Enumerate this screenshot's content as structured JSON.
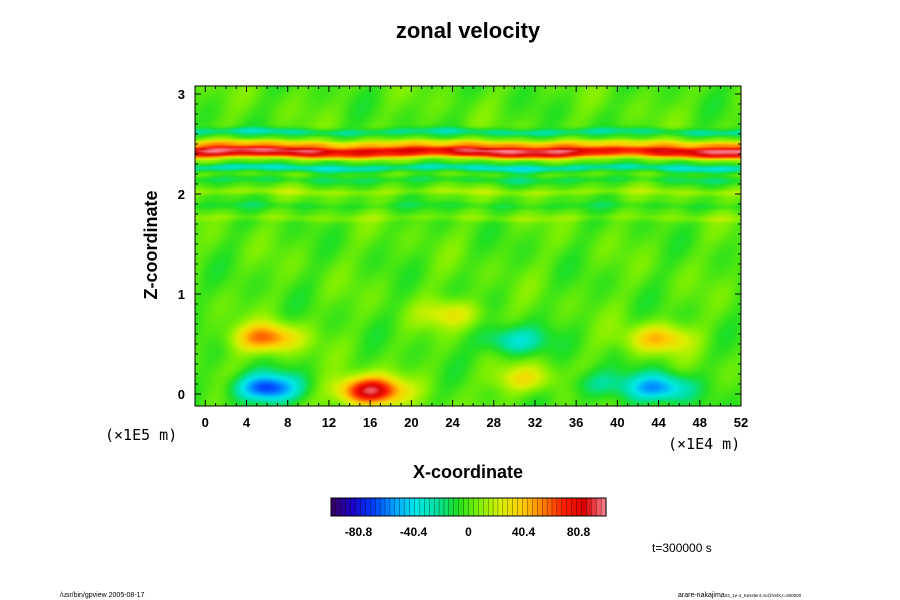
{
  "chart_data": {
    "type": "heatmap",
    "title": "zonal velocity",
    "xlabel": "X-coordinate",
    "ylabel": "Z-coordinate",
    "x_scale_label": "(×1E4 m)",
    "y_scale_label": "(×1E5 m)",
    "x_ticks": [
      "0",
      "4",
      "8",
      "12",
      "16",
      "20",
      "24",
      "28",
      "32",
      "36",
      "40",
      "44",
      "48",
      "52"
    ],
    "y_ticks": [
      "0",
      "1",
      "2",
      "3"
    ],
    "xlim": [
      -1,
      52
    ],
    "ylim": [
      -0.12,
      3.08
    ],
    "colorbar": {
      "labels": [
        "-80.8",
        "-40.4",
        "0",
        "40.4",
        "80.8"
      ],
      "range": [
        -101,
        101
      ]
    },
    "colors": {
      "colormap": [
        "#3a0060",
        "#1a00c8",
        "#0040ff",
        "#00a0ff",
        "#00e8e8",
        "#00e0a0",
        "#20e020",
        "#80f000",
        "#d8f000",
        "#ffd000",
        "#ff8000",
        "#ff2000",
        "#d80000",
        "#ff8898"
      ]
    },
    "field_features": [
      {
        "kind": "band",
        "z": 2.44,
        "value": 78
      },
      {
        "kind": "band",
        "z": 2.39,
        "value": 62
      },
      {
        "kind": "band",
        "z": 2.5,
        "value": 38
      },
      {
        "kind": "band",
        "z": 2.62,
        "value": -22
      },
      {
        "kind": "band",
        "z": 2.26,
        "value": -30
      },
      {
        "kind": "band",
        "z": 2.14,
        "value": -12
      },
      {
        "kind": "band",
        "z": 2.02,
        "value": 12
      },
      {
        "kind": "band",
        "z": 1.88,
        "value": -8
      },
      {
        "kind": "band",
        "z": 1.76,
        "value": 8
      },
      {
        "kind": "blob",
        "x": 6,
        "z": 0.56,
        "value": 58
      },
      {
        "kind": "blob",
        "x": 6,
        "z": 0.06,
        "value": -72
      },
      {
        "kind": "blob",
        "x": 16,
        "z": 0.03,
        "value": 95
      },
      {
        "kind": "blob",
        "x": 30,
        "z": 0.53,
        "value": -35
      },
      {
        "kind": "blob",
        "x": 44,
        "z": 0.55,
        "value": 42
      },
      {
        "kind": "blob",
        "x": 44,
        "z": 0.06,
        "value": -55
      },
      {
        "kind": "blob",
        "x": 24,
        "z": 0.8,
        "value": 28
      },
      {
        "kind": "blob",
        "x": 31,
        "z": 0.15,
        "value": 30
      },
      {
        "kind": "blob",
        "x": 38,
        "z": 0.1,
        "value": -22
      }
    ]
  },
  "time_label": "t=300000 s",
  "footer": {
    "left": "/usr/bin/gpview 2005-08-17",
    "right_main": "arare-nakajima",
    "right_sub": "03_1e-4_Kessler4.nc@VelX,t=300000"
  }
}
